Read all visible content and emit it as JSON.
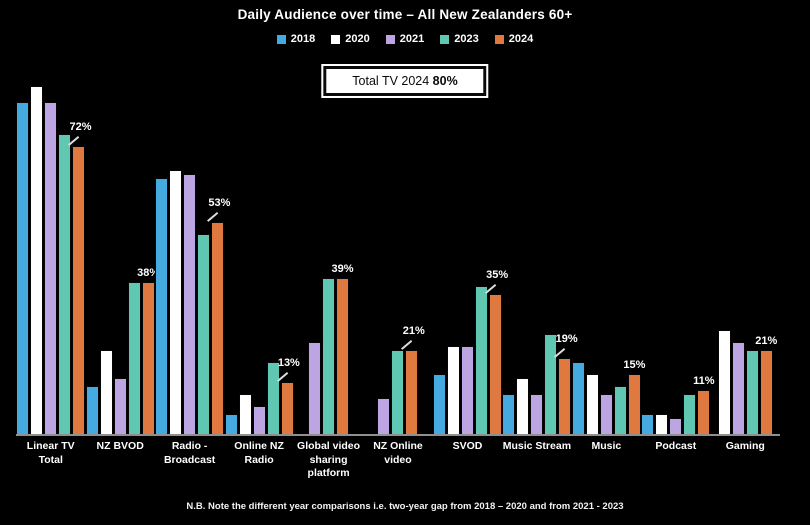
{
  "title": "Daily Audience over time – All New Zealanders 60+",
  "total_box": {
    "prefix": "Total TV 2024 ",
    "value": "80%"
  },
  "footnote": "N.B. Note the different year comparisons  i.e. two-year gap from 2018 – 2020 and from 2021 - 2023",
  "colors": {
    "background": "#000000",
    "axis_line": "#8f8f8f",
    "year_2018": "#44AADF",
    "year_2020": "#FFFFFF",
    "year_2021": "#BDA5E4",
    "year_2023": "#60C8B2",
    "year_2024": "#E0793F"
  },
  "chart_data": {
    "type": "bar",
    "title": "Daily Audience over time – All New Zealanders 60+",
    "unit": "%",
    "ylim": [
      0,
      100
    ],
    "grid": false,
    "legend_position": "top",
    "categories": [
      "Linear TV Total",
      "NZ BVOD",
      "Radio - Broadcast",
      "Online NZ Radio",
      "Global video sharing platform",
      "NZ Online video",
      "SVOD",
      "Music Stream",
      "Music",
      "Podcast",
      "Gaming"
    ],
    "tick_labels": [
      "Linear TV Total",
      "NZ BVOD",
      "Radio -\nBroadcast",
      "Online NZ\nRadio",
      "Global video\nsharing\nplatform",
      "NZ Online\nvideo",
      "SVOD",
      "Music Stream",
      "Music",
      "Podcast",
      "Gaming"
    ],
    "series": [
      {
        "name": "2018",
        "color": "#44AADF",
        "values": [
          83,
          12,
          64,
          5,
          null,
          null,
          15,
          10,
          18,
          5,
          null
        ]
      },
      {
        "name": "2020",
        "color": "#FFFFFF",
        "values": [
          87,
          21,
          66,
          10,
          null,
          null,
          22,
          14,
          15,
          5,
          26
        ]
      },
      {
        "name": "2021",
        "color": "#BDA5E4",
        "values": [
          83,
          14,
          65,
          7,
          23,
          9,
          22,
          10,
          10,
          4,
          23
        ]
      },
      {
        "name": "2023",
        "color": "#60C8B2",
        "values": [
          75,
          38,
          50,
          18,
          39,
          21,
          37,
          25,
          12,
          10,
          21
        ]
      },
      {
        "name": "2024",
        "color": "#E0793F",
        "values": [
          72,
          38,
          53,
          13,
          39,
          21,
          35,
          19,
          15,
          11,
          21
        ]
      }
    ],
    "data_labels_series": "2024",
    "data_labels": [
      {
        "text": "72%",
        "callout_line": true
      },
      {
        "text": "38%",
        "callout_line": false
      },
      {
        "text": "53%",
        "callout_line": true
      },
      {
        "text": "13%",
        "callout_line": true
      },
      {
        "text": "39%",
        "callout_line": false
      },
      {
        "text": "21%",
        "callout_line": true
      },
      {
        "text": "35%",
        "callout_line": true
      },
      {
        "text": "19%",
        "callout_line": true
      },
      {
        "text": "15%",
        "callout_line": false
      },
      {
        "text": "11%",
        "callout_line": false
      },
      {
        "text": "21%",
        "callout_line": false
      }
    ]
  }
}
